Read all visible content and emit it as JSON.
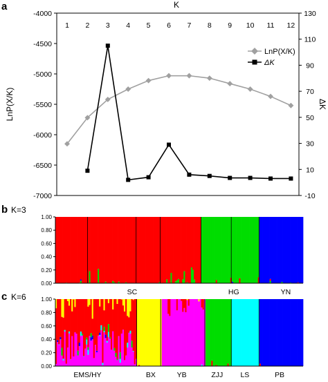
{
  "panels": {
    "a": {
      "letter": "a"
    },
    "b": {
      "letter": "b",
      "k_label": "K=3"
    },
    "c": {
      "letter": "c",
      "k_label": "K=6"
    }
  },
  "chart_data": [
    {
      "type": "line",
      "panel": "a",
      "xlabel": "K",
      "x": [
        1,
        2,
        3,
        4,
        5,
        6,
        7,
        8,
        9,
        10,
        11,
        12
      ],
      "xtick_labels": [
        "1",
        "2",
        "3",
        "4",
        "5",
        "6",
        "7",
        "8",
        "9",
        "10",
        "11",
        "12"
      ],
      "x_axis_position": "top",
      "ylabel_left": "LnP(X/K)",
      "ylabel_right": "ΔK",
      "ylim_left": [
        -7000,
        -4000
      ],
      "yticks_left": [
        -4000,
        -4500,
        -5000,
        -5500,
        -6000,
        -6500,
        -7000
      ],
      "ylim_right": [
        -10,
        130
      ],
      "yticks_right": [
        130,
        110,
        90,
        70,
        50,
        30,
        10,
        -10
      ],
      "legend_position": "right",
      "grid": false,
      "series": [
        {
          "name": "LnP(X/K)",
          "axis": "left",
          "color": "#a0a0a0",
          "marker": "diamond",
          "x": [
            1,
            2,
            3,
            4,
            5,
            6,
            7,
            8,
            9,
            10,
            11,
            12
          ],
          "values": [
            -6150,
            -5720,
            -5420,
            -5250,
            -5110,
            -5030,
            -5030,
            -5070,
            -5160,
            -5250,
            -5370,
            -5520
          ]
        },
        {
          "name": "ΔK",
          "axis": "right",
          "color": "#000000",
          "marker": "square",
          "x": [
            2,
            3,
            4,
            5,
            6,
            7,
            8,
            9,
            10,
            11,
            12
          ],
          "values": [
            9,
            105,
            2,
            4,
            29,
            6,
            5,
            3.5,
            3.5,
            3,
            3
          ]
        }
      ]
    },
    {
      "type": "bar",
      "subtype": "stacked-structure",
      "panel": "b",
      "title": "K=3",
      "ylim": [
        0,
        1
      ],
      "yticks": [
        "0.00",
        "0.20",
        "0.40",
        "0.60",
        "0.80",
        "1.00"
      ],
      "groups": [
        {
          "label": "SC",
          "start": 0,
          "end": 0.72,
          "color": "#ff0000"
        },
        {
          "label": "HG",
          "start": 0.72,
          "end": 0.987,
          "color": "#00dd00"
        },
        {
          "label": "YN",
          "start": 0.987,
          "end": 1.0,
          "color": "#0000ff"
        }
      ],
      "group_labels": [
        "SC",
        "HG",
        "YN"
      ],
      "cluster_colors": [
        "#ff0000",
        "#00dd00",
        "#0000ff"
      ]
    },
    {
      "type": "bar",
      "subtype": "stacked-structure",
      "panel": "c",
      "title": "K=6",
      "ylim": [
        0,
        1
      ],
      "yticks": [
        "0.00",
        "0.20",
        "0.40",
        "0.60",
        "0.80",
        "1.00"
      ],
      "group_labels": [
        "EMS/HY",
        "BX",
        "YB",
        "ZJJ",
        "LS",
        "PB"
      ],
      "cluster_colors": [
        "#ff0000",
        "#ffff00",
        "#ff00ff",
        "#00dd00",
        "#00ffff",
        "#0000ff"
      ]
    }
  ]
}
